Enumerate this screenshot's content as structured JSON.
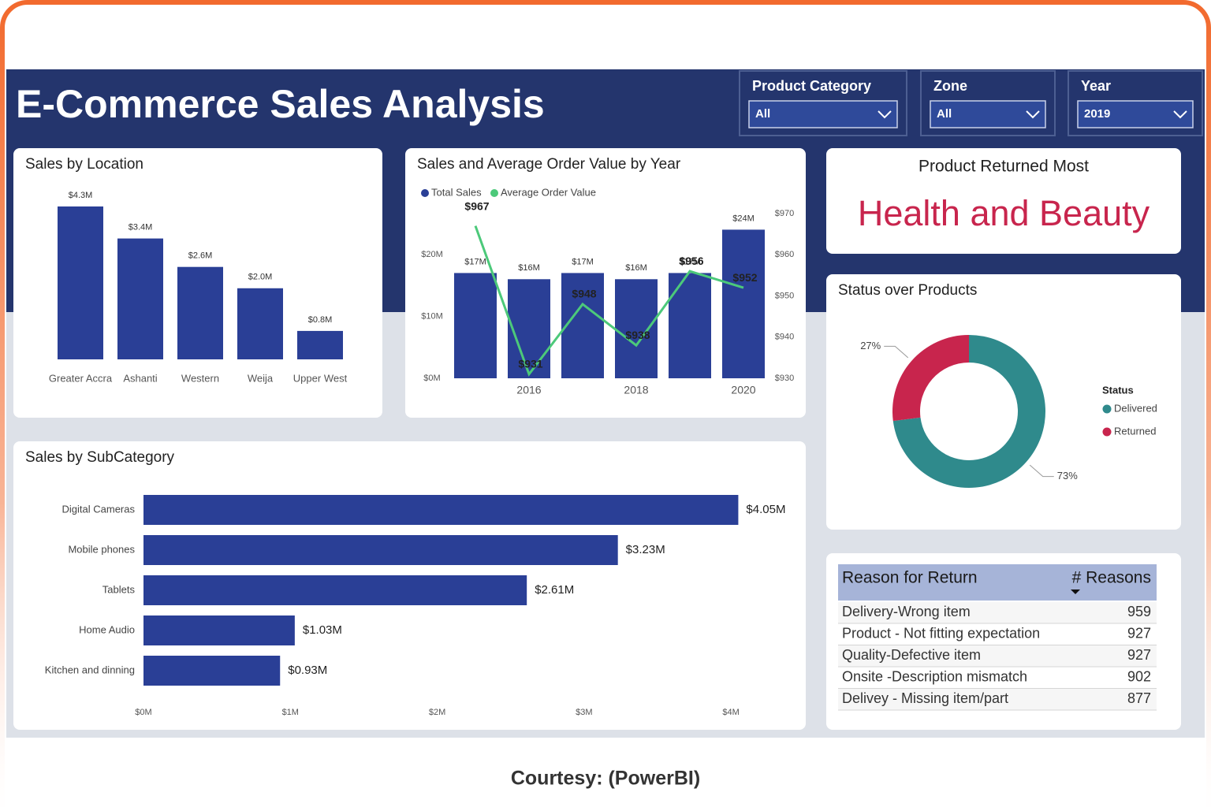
{
  "header": {
    "title": "E-Commerce Sales Analysis"
  },
  "filters": [
    {
      "label": "Product Category",
      "value": "All"
    },
    {
      "label": "Zone",
      "value": "All"
    },
    {
      "label": "Year",
      "value": "2019"
    }
  ],
  "chart_data": [
    {
      "type": "bar",
      "title": "Sales by Location",
      "categories": [
        "Greater Accra",
        "Ashanti",
        "Western",
        "Weija",
        "Upper West"
      ],
      "values": [
        4.3,
        3.4,
        2.6,
        2.0,
        0.8
      ],
      "value_labels": [
        "$4.3M",
        "$3.4M",
        "$2.6M",
        "$2.0M",
        "$0.8M"
      ],
      "color": "#2a3f96"
    },
    {
      "type": "combo",
      "title": "Sales and Average Order Value by Year",
      "categories": [
        null,
        "2016",
        null,
        "2018",
        null,
        "2020"
      ],
      "series": [
        {
          "name": "Total Sales",
          "type": "bar",
          "color": "#2a3f96",
          "values": [
            17,
            16,
            17,
            16,
            17,
            24
          ],
          "value_labels": [
            "$17M",
            "$16M",
            "$17M",
            "$16M",
            "$17M",
            "$24M"
          ]
        },
        {
          "name": "Average Order Value",
          "type": "line",
          "axis": "y2",
          "color": "#4cc97a",
          "values": [
            967,
            931,
            948,
            938,
            956,
            952
          ],
          "value_labels": [
            "$967",
            "$931",
            "$948",
            "$938",
            "$956",
            "$952"
          ]
        }
      ],
      "ylim": [
        0,
        26.6
      ],
      "yticks": [
        {
          "value": 0,
          "label": "$0M"
        },
        {
          "value": 10,
          "label": "$10M"
        },
        {
          "value": 20,
          "label": "$20M"
        }
      ],
      "y2lim": [
        930,
        970
      ],
      "y2ticks": [
        {
          "value": 930,
          "label": "$930"
        },
        {
          "value": 940,
          "label": "$940"
        },
        {
          "value": 950,
          "label": "$950"
        },
        {
          "value": 960,
          "label": "$960"
        },
        {
          "value": 970,
          "label": "$970"
        }
      ]
    },
    {
      "type": "donut",
      "title": "Status over Products",
      "legend_title": "Status",
      "categories": [
        "Delivered",
        "Returned"
      ],
      "values": [
        73,
        27
      ],
      "value_labels": [
        "73%",
        "27%"
      ],
      "colors": [
        "#2f8a8c",
        "#c8254d"
      ]
    },
    {
      "type": "hbar",
      "title": "Sales by SubCategory",
      "categories": [
        "Digital Cameras",
        "Mobile phones",
        "Tablets",
        "Home Audio",
        "Kitchen and dinning"
      ],
      "values": [
        4.05,
        3.23,
        2.61,
        1.03,
        0.93
      ],
      "value_labels": [
        "$4.05M",
        "$3.23M",
        "$2.61M",
        "$1.03M",
        "$0.93M"
      ],
      "color": "#2a3f96",
      "xlim": [
        0,
        4.3
      ],
      "xticks": [
        {
          "value": 0,
          "label": "$0M"
        },
        {
          "value": 1,
          "label": "$1M"
        },
        {
          "value": 2,
          "label": "$2M"
        },
        {
          "value": 3,
          "label": "$3M"
        },
        {
          "value": 4,
          "label": "$4M"
        }
      ]
    }
  ],
  "card": {
    "title": "Product Returned Most",
    "value": "Health and Beauty"
  },
  "table": {
    "columns": [
      "Reason for Return",
      "# Reasons"
    ],
    "rows": [
      [
        "Delivery-Wrong item",
        959
      ],
      [
        "Product - Not fitting expectation",
        927
      ],
      [
        "Quality-Defective item",
        927
      ],
      [
        "Onsite -Description mismatch",
        902
      ],
      [
        "Delivey - Missing item/part",
        877
      ]
    ]
  },
  "footer": "Courtesy: (PowerBI)"
}
